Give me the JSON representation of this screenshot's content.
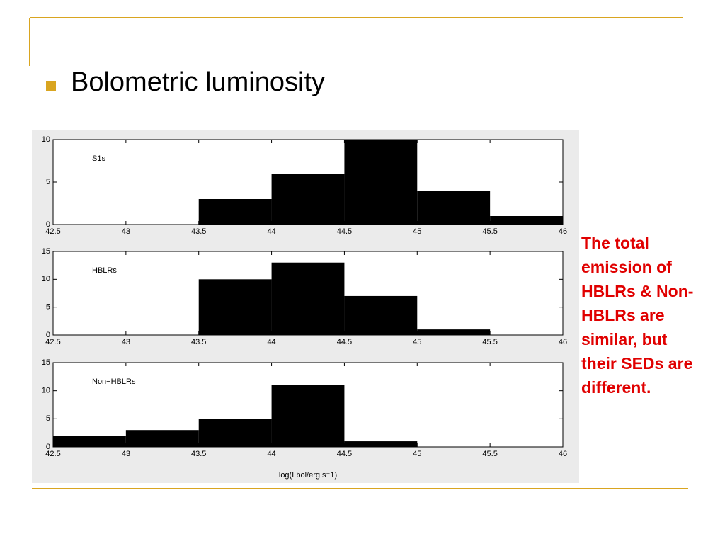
{
  "slide": {
    "title": "Bolometric luminosity",
    "note": "The total emission of HBLRs & Non-HBLRs are similar, but their SEDs are different."
  },
  "chart_data": [
    {
      "type": "histogram",
      "label": "S1s",
      "bins": [
        42.5,
        43,
        43.5,
        44,
        44.5,
        45,
        45.5,
        46
      ],
      "values": [
        0,
        0,
        3,
        6,
        10,
        4,
        1
      ],
      "color": "#000000",
      "xlim": [
        42.5,
        46
      ],
      "ylim": [
        0,
        10
      ],
      "xticks": [
        42.5,
        43,
        43.5,
        44,
        44.5,
        45,
        45.5,
        46
      ],
      "yticks": [
        0,
        5,
        10
      ]
    },
    {
      "type": "histogram",
      "label": "HBLRs",
      "bins": [
        42.5,
        43,
        43.5,
        44,
        44.5,
        45,
        45.5,
        46
      ],
      "values": [
        0,
        0,
        10,
        13,
        7,
        1,
        0
      ],
      "color": "#000000",
      "xlim": [
        42.5,
        46
      ],
      "ylim": [
        0,
        15
      ],
      "xticks": [
        42.5,
        43,
        43.5,
        44,
        44.5,
        45,
        45.5,
        46
      ],
      "yticks": [
        0,
        5,
        10,
        15
      ]
    },
    {
      "type": "histogram",
      "label": "Non−HBLRs",
      "bins": [
        42.5,
        43,
        43.5,
        44,
        44.5,
        45,
        45.5,
        46
      ],
      "values": [
        2,
        3,
        5,
        11,
        1,
        0,
        0
      ],
      "color": "#000000",
      "xlim": [
        42.5,
        46
      ],
      "ylim": [
        0,
        15
      ],
      "xticks": [
        42.5,
        43,
        43.5,
        44,
        44.5,
        45,
        45.5,
        46
      ],
      "yticks": [
        0,
        5,
        10,
        15
      ],
      "xlabel": "log(Lbol/erg s⁻1)"
    }
  ]
}
